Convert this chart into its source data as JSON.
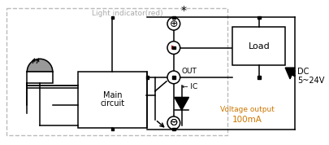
{
  "fig_width": 4.05,
  "fig_height": 1.78,
  "dpi": 100,
  "bg_color": "#ffffff",
  "line_color": "#000000",
  "gray_text": "#aaaaaa",
  "orange_text": "#cc7700",
  "light_indicator_text": "Light indicator(red)",
  "main_circuit_text": [
    "Main",
    "circuit"
  ],
  "load_text": "Load",
  "out_text": "OUT",
  "ic_text": "← IC",
  "voltage_text": [
    "Voltage output",
    "100mA"
  ],
  "dc_text": [
    "DC",
    "5~24V"
  ],
  "asterisk": "*"
}
